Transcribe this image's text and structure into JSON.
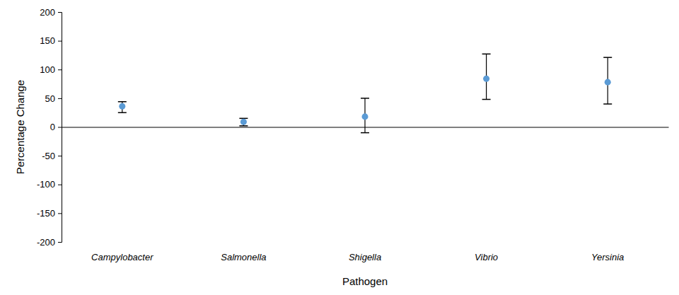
{
  "chart_data": {
    "type": "scatter",
    "x_label": "Pathogen",
    "y_label": "Percentage Change",
    "categories": [
      "Campylobacter",
      "Salmonella",
      "Shigella",
      "Vibrio",
      "Yersinia"
    ],
    "values": [
      36,
      9,
      18,
      84,
      78
    ],
    "lower": [
      25,
      2,
      -10,
      48,
      40
    ],
    "upper": [
      44,
      15,
      50,
      127,
      121
    ],
    "color": "#5b9bd5",
    "marker": "circle",
    "ylim": [
      -200,
      200
    ],
    "yticks": [
      -200,
      -150,
      -100,
      -50,
      0,
      50,
      100,
      150,
      200
    ],
    "grid": false
  }
}
